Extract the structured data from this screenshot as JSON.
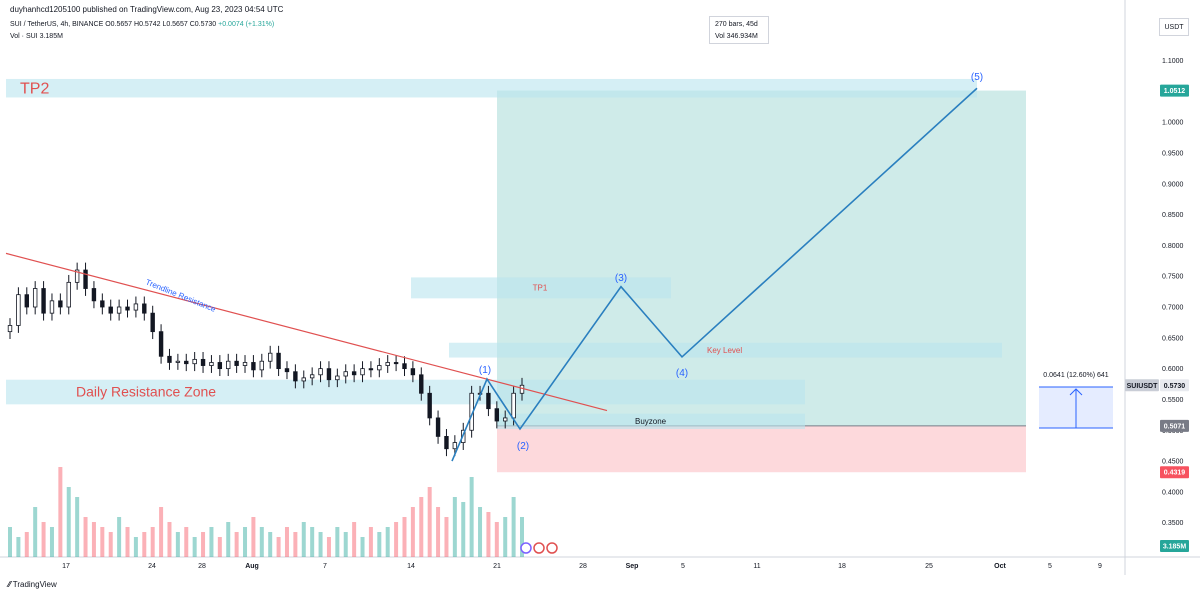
{
  "header": {
    "published": "duyhanhcd1205100 published on TradingView.com, Aug 23, 2023 04:54 UTC",
    "symbol": "SUI / TetherUS, 4h, BINANCE",
    "o": "O0.5657",
    "h": "H0.5742",
    "l": "L0.5657",
    "c": "C0.5730",
    "change": "+0.0074 (+1.31%)",
    "vol_label": "Vol · SUI",
    "vol_value": "3.185M"
  },
  "infobox": {
    "bars": "270 bars, 45d",
    "vol": "Vol 346.934M"
  },
  "currency_button": "USDT",
  "footer_brand": "TradingView",
  "colors": {
    "up": "#26a69a",
    "down": "#f7525f",
    "trend": "#e05050",
    "path": "#2a7fbf",
    "target": "#26a69a",
    "stop": "#f7525f",
    "zone": "#b9e5ef"
  },
  "chart_data": {
    "type": "candlestick",
    "y_scale": "linear",
    "ylim": [
      0.3,
      1.11
    ],
    "y_ticks": [
      "1.1000",
      "1.0500",
      "1.0000",
      "0.9500",
      "0.9000",
      "0.8500",
      "0.8000",
      "0.7500",
      "0.7000",
      "0.6500",
      "0.6000",
      "0.5500",
      "0.5000",
      "0.4500",
      "0.4000",
      "0.3500"
    ],
    "x_ticks": [
      "17",
      "24",
      "28",
      "Aug",
      "7",
      "14",
      "21",
      "28",
      "Sep",
      "5",
      "11",
      "18",
      "25",
      "Oct",
      "5",
      "9"
    ],
    "price_markers": [
      {
        "label": "1.0512",
        "value": 1.0512,
        "color": "#26a69a"
      },
      {
        "label": "SUIUSDT",
        "value": 0.573,
        "color": "#c9cdd6"
      },
      {
        "label": "0.5730",
        "value": 0.573,
        "color": "#e8eaef"
      },
      {
        "label": "0.5071",
        "value": 0.5071,
        "color": "#787b86"
      },
      {
        "label": "0.4319",
        "value": 0.4319,
        "color": "#f7525f"
      },
      {
        "label": "3.185M",
        "value": null,
        "color": "#26a69a"
      }
    ],
    "zones": [
      {
        "label": "TP2",
        "low": 1.04,
        "high": 1.07
      },
      {
        "label": "TP1",
        "low": 0.714,
        "high": 0.748
      },
      {
        "label": "Key Level",
        "low": 0.618,
        "high": 0.642
      },
      {
        "label": "Daily Resistance Zone",
        "low": 0.542,
        "high": 0.582
      },
      {
        "label": "Buyzone",
        "low": 0.502,
        "high": 0.527
      }
    ],
    "trendline_label": "Trendline Resistance",
    "wave_labels": [
      "(1)",
      "(2)",
      "(3)",
      "(4)",
      "(5)"
    ],
    "wave_points": [
      0.45,
      0.583,
      0.502,
      0.733,
      0.619,
      1.055
    ],
    "position": {
      "entry": 0.5071,
      "target": 1.0512,
      "stop": 0.4319
    },
    "measure_label": "0.0641 (12.60%) 641",
    "candles": [
      0.67,
      0.72,
      0.7,
      0.73,
      0.69,
      0.71,
      0.7,
      0.74,
      0.76,
      0.73,
      0.71,
      0.7,
      0.69,
      0.7,
      0.695,
      0.705,
      0.69,
      0.66,
      0.62,
      0.61,
      0.612,
      0.608,
      0.615,
      0.605,
      0.61,
      0.6,
      0.612,
      0.605,
      0.61,
      0.598,
      0.612,
      0.625,
      0.6,
      0.595,
      0.58,
      0.585,
      0.59,
      0.6,
      0.582,
      0.588,
      0.595,
      0.59,
      0.6,
      0.598,
      0.605,
      0.61,
      0.608,
      0.6,
      0.59,
      0.56,
      0.52,
      0.49,
      0.47,
      0.48,
      0.5,
      0.56,
      0.56,
      0.535,
      0.515,
      0.52,
      0.56,
      0.573
    ],
    "volumes": [
      0.3,
      0.2,
      0.25,
      0.5,
      0.35,
      0.3,
      0.9,
      0.7,
      0.6,
      0.4,
      0.35,
      0.3,
      0.25,
      0.4,
      0.3,
      0.2,
      0.25,
      0.3,
      0.5,
      0.35,
      0.25,
      0.3,
      0.2,
      0.25,
      0.3,
      0.2,
      0.35,
      0.25,
      0.3,
      0.4,
      0.3,
      0.25,
      0.2,
      0.3,
      0.25,
      0.35,
      0.3,
      0.25,
      0.2,
      0.3,
      0.25,
      0.35,
      0.2,
      0.3,
      0.25,
      0.3,
      0.35,
      0.4,
      0.5,
      0.6,
      0.7,
      0.5,
      0.4,
      0.6,
      0.55,
      0.8,
      0.5,
      0.45,
      0.35,
      0.4,
      0.6,
      0.4
    ]
  }
}
